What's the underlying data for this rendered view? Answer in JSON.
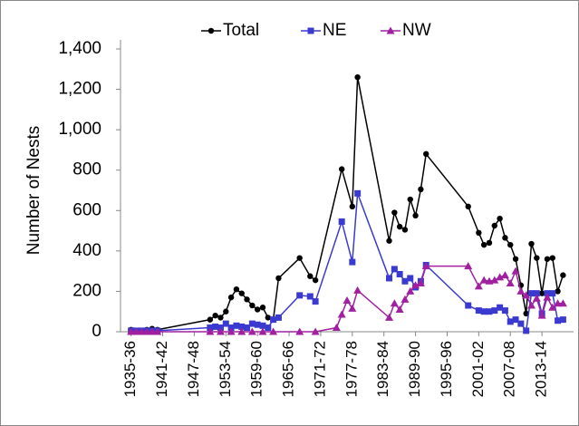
{
  "chart_data": {
    "type": "line",
    "y_label": "Number of Nests",
    "xlim": [
      1933,
      2019
    ],
    "xticks": [
      {
        "value": 1935,
        "label": "1935-36"
      },
      {
        "value": 1941,
        "label": "1941-42"
      },
      {
        "value": 1947,
        "label": "1947-48"
      },
      {
        "value": 1953,
        "label": "1953-54"
      },
      {
        "value": 1959,
        "label": "1959-60"
      },
      {
        "value": 1965,
        "label": "1965-66"
      },
      {
        "value": 1971,
        "label": "1971-72"
      },
      {
        "value": 1977,
        "label": "1977-78"
      },
      {
        "value": 1983,
        "label": "1983-84"
      },
      {
        "value": 1989,
        "label": "1989-90"
      },
      {
        "value": 1995,
        "label": "1995-96"
      },
      {
        "value": 2001,
        "label": "2001-02"
      },
      {
        "value": 2007,
        "label": "2007-08"
      },
      {
        "value": 2013,
        "label": "2013-14"
      }
    ],
    "ylim": [
      0,
      1400
    ],
    "yticks": [
      0,
      200,
      400,
      600,
      800,
      {
        "value": 1000,
        "label": "1,000"
      },
      {
        "value": 1200,
        "label": "1,200"
      },
      {
        "value": 1400,
        "label": "1,400"
      }
    ],
    "legend": "top",
    "series": [
      {
        "name": "Total",
        "color": "#000000",
        "marker": "circle",
        "x": [
          1935,
          1936,
          1937,
          1938,
          1939,
          1940,
          1950,
          1951,
          1952,
          1953,
          1954,
          1955,
          1956,
          1957,
          1958,
          1959,
          1960,
          1961,
          1962,
          1963,
          1967,
          1969,
          1970,
          1975,
          1977,
          1978,
          1984,
          1985,
          1986,
          1987,
          1988,
          1989,
          1990,
          1991,
          1999,
          2001,
          2002,
          2003,
          2004,
          2005,
          2006,
          2007,
          2008,
          2009,
          2010,
          2011,
          2012,
          2013,
          2014,
          2015,
          2016,
          2017
        ],
        "values": [
          10,
          5,
          5,
          10,
          15,
          10,
          60,
          80,
          70,
          100,
          170,
          210,
          190,
          160,
          130,
          110,
          120,
          70,
          60,
          265,
          365,
          275,
          255,
          805,
          620,
          1260,
          450,
          590,
          520,
          505,
          655,
          575,
          705,
          880,
          620,
          490,
          430,
          440,
          525,
          560,
          465,
          430,
          360,
          230,
          90,
          435,
          365,
          190,
          360,
          365,
          200,
          280
        ]
      },
      {
        "name": "NE",
        "color": "#3a3ad0",
        "marker": "square",
        "x": [
          1935,
          1936,
          1937,
          1938,
          1939,
          1940,
          1950,
          1951,
          1952,
          1953,
          1954,
          1955,
          1956,
          1957,
          1958,
          1959,
          1960,
          1961,
          1962,
          1963,
          1967,
          1969,
          1970,
          1975,
          1977,
          1978,
          1984,
          1985,
          1986,
          1987,
          1988,
          1989,
          1990,
          1991,
          1999,
          2001,
          2002,
          2003,
          2004,
          2005,
          2006,
          2007,
          2008,
          2009,
          2010,
          2011,
          2012,
          2013,
          2014,
          2015,
          2016,
          2017
        ],
        "values": [
          5,
          5,
          5,
          5,
          5,
          5,
          20,
          25,
          20,
          40,
          20,
          30,
          25,
          20,
          40,
          35,
          30,
          20,
          60,
          70,
          180,
          175,
          150,
          545,
          345,
          685,
          265,
          310,
          285,
          250,
          265,
          220,
          250,
          330,
          130,
          105,
          100,
          100,
          105,
          120,
          105,
          50,
          60,
          40,
          5,
          190,
          190,
          90,
          190,
          190,
          55,
          60
        ]
      },
      {
        "name": "NW",
        "color": "#a020a0",
        "marker": "triangle",
        "x": [
          1935,
          1936,
          1937,
          1938,
          1939,
          1940,
          1950,
          1952,
          1954,
          1956,
          1958,
          1960,
          1962,
          1967,
          1970,
          1974,
          1975,
          1976,
          1977,
          1978,
          1984,
          1985,
          1986,
          1987,
          1988,
          1989,
          1990,
          1991,
          1999,
          2001,
          2002,
          2003,
          2004,
          2005,
          2006,
          2007,
          2008,
          2009,
          2010,
          2011,
          2012,
          2013,
          2014,
          2015,
          2016,
          2017
        ],
        "values": [
          0,
          0,
          0,
          0,
          0,
          0,
          0,
          0,
          0,
          0,
          0,
          0,
          0,
          0,
          0,
          20,
          85,
          155,
          115,
          205,
          70,
          140,
          110,
          160,
          200,
          230,
          240,
          325,
          325,
          225,
          255,
          250,
          255,
          270,
          280,
          240,
          300,
          200,
          180,
          130,
          165,
          80,
          170,
          120,
          140,
          140
        ]
      }
    ]
  }
}
